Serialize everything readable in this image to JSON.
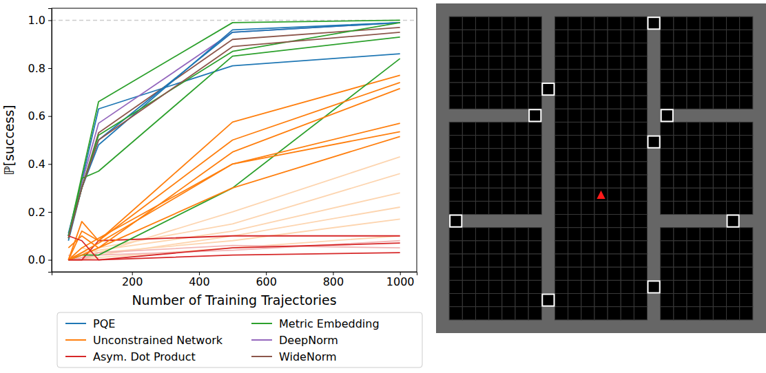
{
  "chart_data": {
    "type": "line",
    "x_label": "Number of Training Trajectories",
    "y_label": "ℙ[success]",
    "x": [
      10,
      50,
      100,
      500,
      1000
    ],
    "xlim": [
      -40,
      1050
    ],
    "xticks": [
      200,
      400,
      600,
      800,
      1000
    ],
    "ylim": [
      -0.05,
      1.05
    ],
    "yticks": [
      {
        "value": 0,
        "label": "0.0"
      },
      {
        "value": 0.2,
        "label": "0.2"
      },
      {
        "value": 0.4,
        "label": "0.4"
      },
      {
        "value": 0.6,
        "label": "0.6"
      },
      {
        "value": 0.8,
        "label": "0.8"
      },
      {
        "value": 1,
        "label": "1.0"
      }
    ],
    "hline": 1,
    "grid": false,
    "legend": "bottom",
    "series": [
      {
        "name": "PQE",
        "color": "#1f77b4",
        "values": [
          0.11,
          0.33,
          0.63,
          0.81,
          0.86
        ]
      },
      {
        "name": "Unconstrained Network",
        "color": "#ff7f0e",
        "values": [
          0.0,
          0.16,
          0.08,
          0.575,
          0.77
        ]
      },
      {
        "name": "Asym. Dot Product",
        "color": "#d62728",
        "values": [
          0.0,
          0.0,
          0.08,
          0.1,
          0.1
        ]
      },
      {
        "name": "Metric Embedding",
        "color": "#2ca02c",
        "values": [
          0.1,
          0.35,
          0.66,
          0.99,
          1.0
        ]
      },
      {
        "name": "DeepNorm",
        "color": "#9467bd",
        "values": [
          0.1,
          0.32,
          0.57,
          0.95,
          0.99
        ]
      },
      {
        "name": "WideNorm",
        "color": "#8c564b",
        "values": [
          0.1,
          0.3,
          0.53,
          0.92,
          0.97
        ]
      },
      {
        "name": "PQE",
        "color": "#1f77b4",
        "values": [
          0.08,
          0.3,
          0.48,
          0.96,
          0.99
        ]
      },
      {
        "name": "PQE",
        "color": "#1f77b4",
        "values": [
          0.1,
          0.3,
          0.5,
          0.95,
          0.99
        ]
      },
      {
        "name": "Metric Embedding",
        "color": "#2ca02c",
        "values": [
          0.09,
          0.34,
          0.37,
          0.85,
          0.93
        ]
      },
      {
        "name": "Metric Embedding",
        "color": "#2ca02c",
        "values": [
          0.1,
          0.3,
          0.52,
          0.87,
          0.99
        ]
      },
      {
        "name": "Metric Embedding",
        "color": "#2ca02c",
        "values": [
          0.0,
          0.02,
          0.02,
          0.3,
          0.84
        ]
      },
      {
        "name": "WideNorm",
        "color": "#8c564b",
        "values": [
          0.09,
          0.3,
          0.5,
          0.89,
          0.95
        ]
      },
      {
        "name": "Unconstrained Network",
        "color": "#ff7f0e",
        "values": [
          0.0,
          0.12,
          0.08,
          0.5,
          0.74
        ]
      },
      {
        "name": "Unconstrained Network",
        "color": "#ff7f0e",
        "values": [
          0.05,
          0.1,
          0.05,
          0.45,
          0.715
        ]
      },
      {
        "name": "Unconstrained Network",
        "color": "#ff7f0e",
        "values": [
          0.0,
          0.05,
          0.09,
          0.4,
          0.57
        ]
      },
      {
        "name": "Unconstrained Network",
        "color": "#ff7f0e",
        "values": [
          0.0,
          0.03,
          0.07,
          0.4,
          0.535
        ]
      },
      {
        "name": "Unconstrained Network",
        "color": "#ff7f0e",
        "values": [
          0.0,
          0.02,
          0.05,
          0.3,
          0.515
        ]
      },
      {
        "name": "Asym. Dot Product",
        "color": "#d62728",
        "values": [
          0.1,
          0.08,
          0.0,
          0.05,
          0.07
        ]
      },
      {
        "name": "Asym. Dot Product",
        "color": "#d62728",
        "values": [
          0.0,
          0.0,
          0.0,
          0.02,
          0.03
        ]
      },
      {
        "name": "Unconstrained Network",
        "color": "#fdd5b0",
        "values": [
          0.0,
          0.02,
          0.03,
          0.2,
          0.43
        ]
      },
      {
        "name": "Unconstrained Network",
        "color": "#fdd5b0",
        "values": [
          0.0,
          0.01,
          0.05,
          0.15,
          0.36
        ]
      },
      {
        "name": "Unconstrained Network",
        "color": "#fdd5b0",
        "values": [
          0.0,
          0.03,
          0.04,
          0.12,
          0.28
        ]
      },
      {
        "name": "Unconstrained Network",
        "color": "#fdd5b0",
        "values": [
          0.0,
          0.0,
          0.02,
          0.1,
          0.22
        ]
      },
      {
        "name": "Unconstrained Network",
        "color": "#fdd5b0",
        "values": [
          0.0,
          0.05,
          0.03,
          0.08,
          0.17
        ]
      },
      {
        "name": "Unconstrained Network",
        "color": "#fdd5b0",
        "values": [
          0.0,
          0.0,
          0.01,
          0.05,
          0.1
        ]
      },
      {
        "name": "Asym. Dot Product",
        "color": "#f2b5b5",
        "values": [
          0.0,
          0.01,
          0.02,
          0.04,
          0.08
        ]
      },
      {
        "name": "Asym. Dot Product",
        "color": "#f2b5b5",
        "values": [
          0.02,
          0.0,
          0.03,
          0.06,
          0.05
        ]
      }
    ]
  }
}
